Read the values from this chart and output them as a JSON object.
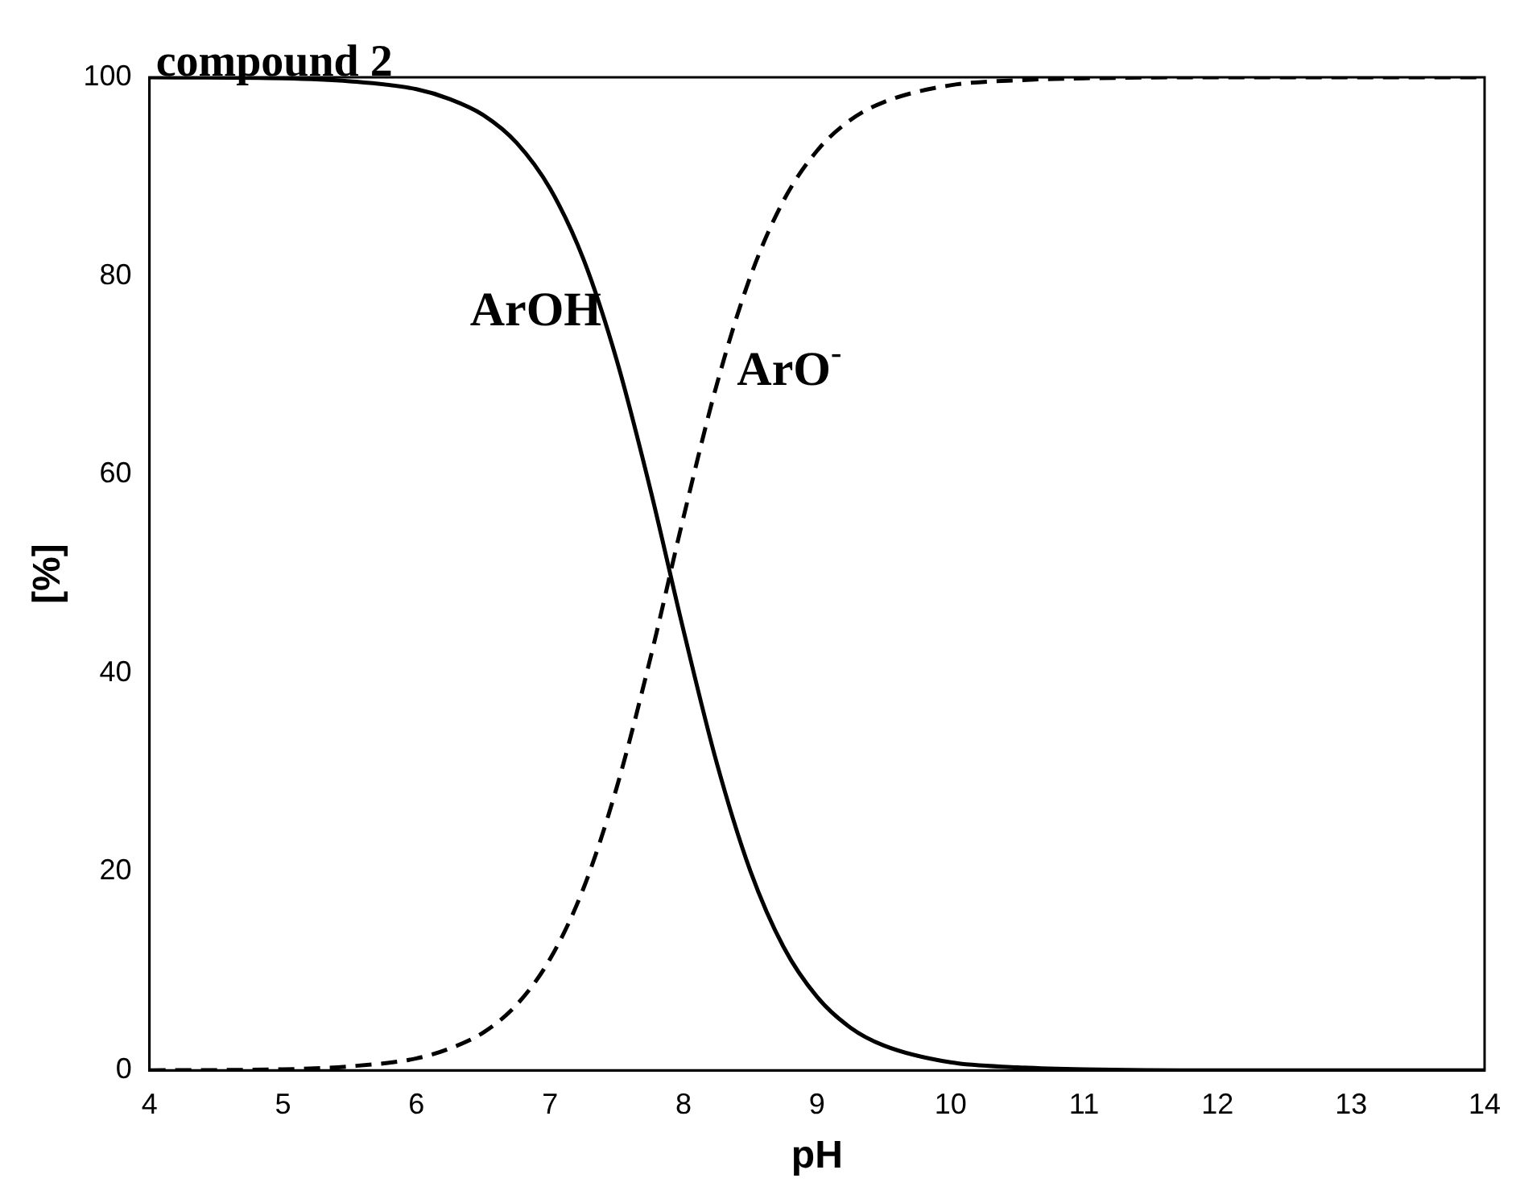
{
  "chart_data": {
    "type": "line",
    "title": "compound 2",
    "xlabel": "pH",
    "ylabel": "[%]",
    "x": [
      4,
      5,
      5.5,
      6,
      6.25,
      6.5,
      6.75,
      7,
      7.25,
      7.5,
      7.75,
      8,
      8.25,
      8.5,
      8.75,
      9,
      9.25,
      9.5,
      10,
      10.5,
      11,
      12,
      14
    ],
    "series": [
      {
        "name": "ArOH",
        "color": "#000000",
        "line_style": "solid",
        "values": [
          100,
          99.9,
          99.6,
          98.8,
          97.8,
          96.2,
          93.4,
          88.8,
          81.7,
          71.5,
          58.6,
          44.3,
          30.9,
          20.1,
          12.4,
          7.4,
          4.3,
          2.5,
          0.8,
          0.3,
          0.1,
          0,
          0
        ]
      },
      {
        "name": "ArO$^{-}$",
        "color": "#000000",
        "line_style": "dashed",
        "values": [
          0,
          0.1,
          0.4,
          1.2,
          2.2,
          3.8,
          6.6,
          11.2,
          18.3,
          28.5,
          41.4,
          55.7,
          69.1,
          79.9,
          87.6,
          92.6,
          95.7,
          97.5,
          99.2,
          99.7,
          99.9,
          100,
          100
        ]
      }
    ],
    "xlim": [
      4,
      14
    ],
    "xticks": [
      4,
      5,
      6,
      7,
      8,
      9,
      10,
      11,
      12,
      13,
      14
    ],
    "ylim": [
      0,
      100
    ],
    "yticks": [
      0,
      20,
      40,
      60,
      80,
      100
    ],
    "grid": false,
    "legend": false,
    "marker": "none"
  }
}
